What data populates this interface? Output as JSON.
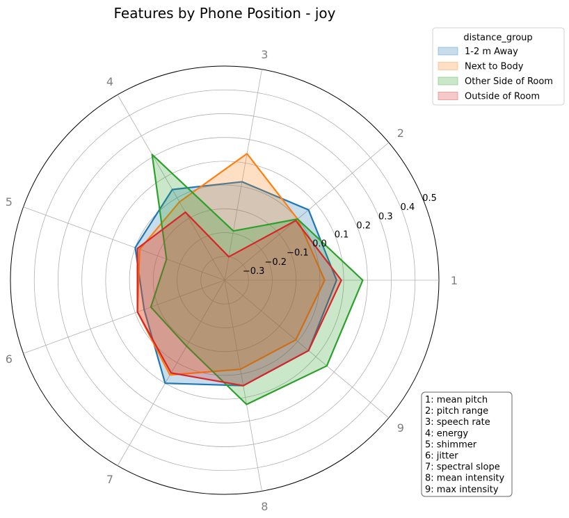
{
  "chart_data": {
    "type": "radar",
    "title": "Features by Phone Position - joy",
    "axes": [
      "1",
      "2",
      "3",
      "4",
      "5",
      "6",
      "7",
      "8",
      "9"
    ],
    "rlim": [
      -0.4,
      0.5
    ],
    "ring_ticks": [
      -0.3,
      -0.2,
      -0.1,
      0.0,
      0.1,
      0.2,
      0.3,
      0.4,
      0.5
    ],
    "ring_tick_labels": [
      "−0.3",
      "−0.2",
      "−0.1",
      "0.0",
      "0.1",
      "0.2",
      "0.3",
      "0.4",
      "0.5"
    ],
    "grid": true,
    "legend": {
      "title": "distance_group",
      "placement": "top-right outside"
    },
    "series": [
      {
        "name": "1-2 m Away",
        "color": "#1f77b4",
        "values": [
          0.07,
          0.06,
          0.02,
          0.04,
          0.0,
          -0.04,
          0.1,
          0.05,
          0.06
        ]
      },
      {
        "name": "Next to Body",
        "color": "#ff7f0e",
        "values": [
          0.02,
          0.0,
          0.14,
          -0.02,
          -0.02,
          -0.01,
          0.06,
          -0.02,
          -0.01
        ]
      },
      {
        "name": "Other Side of Room",
        "color": "#2ca02c",
        "values": [
          0.18,
          0.0,
          -0.19,
          0.21,
          -0.14,
          -0.07,
          -0.08,
          0.13,
          0.16
        ]
      },
      {
        "name": "Outside of Room",
        "color": "#d62728",
        "values": [
          0.09,
          -0.01,
          -0.3,
          -0.07,
          -0.01,
          -0.01,
          0.05,
          0.05,
          0.06
        ]
      }
    ],
    "annotation": [
      "1: mean pitch",
      "2: pitch range",
      "3: speech rate",
      "4: energy",
      "5: shimmer",
      "6: jitter",
      "7: spectral slope",
      "8: mean intensity",
      "9: max intensity"
    ]
  }
}
